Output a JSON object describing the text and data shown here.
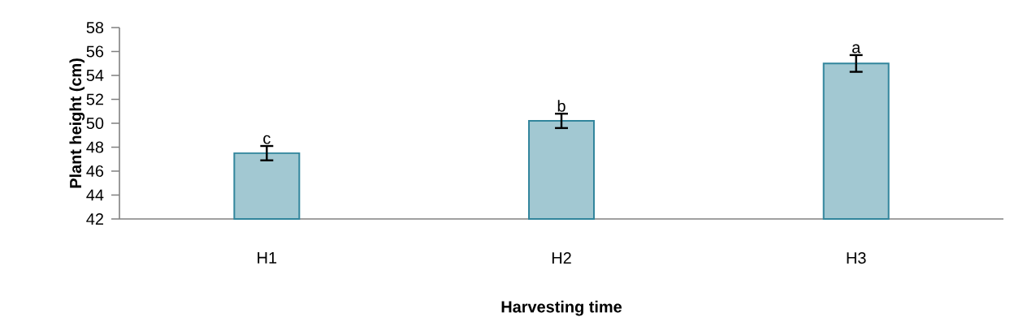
{
  "chart_data": {
    "type": "bar",
    "xlabel": "Harvesting time",
    "ylabel": "Plant height (cm)",
    "categories": [
      "H1",
      "H2",
      "H3"
    ],
    "values": [
      47.5,
      50.2,
      55.0
    ],
    "errors": [
      0.6,
      0.6,
      0.7
    ],
    "color": "#31859c",
    "ylim": [
      42,
      58
    ],
    "yticks": [
      42,
      44,
      46,
      48,
      50,
      52,
      54,
      56,
      58
    ],
    "annotations": [
      "c",
      "b",
      "a"
    ]
  }
}
